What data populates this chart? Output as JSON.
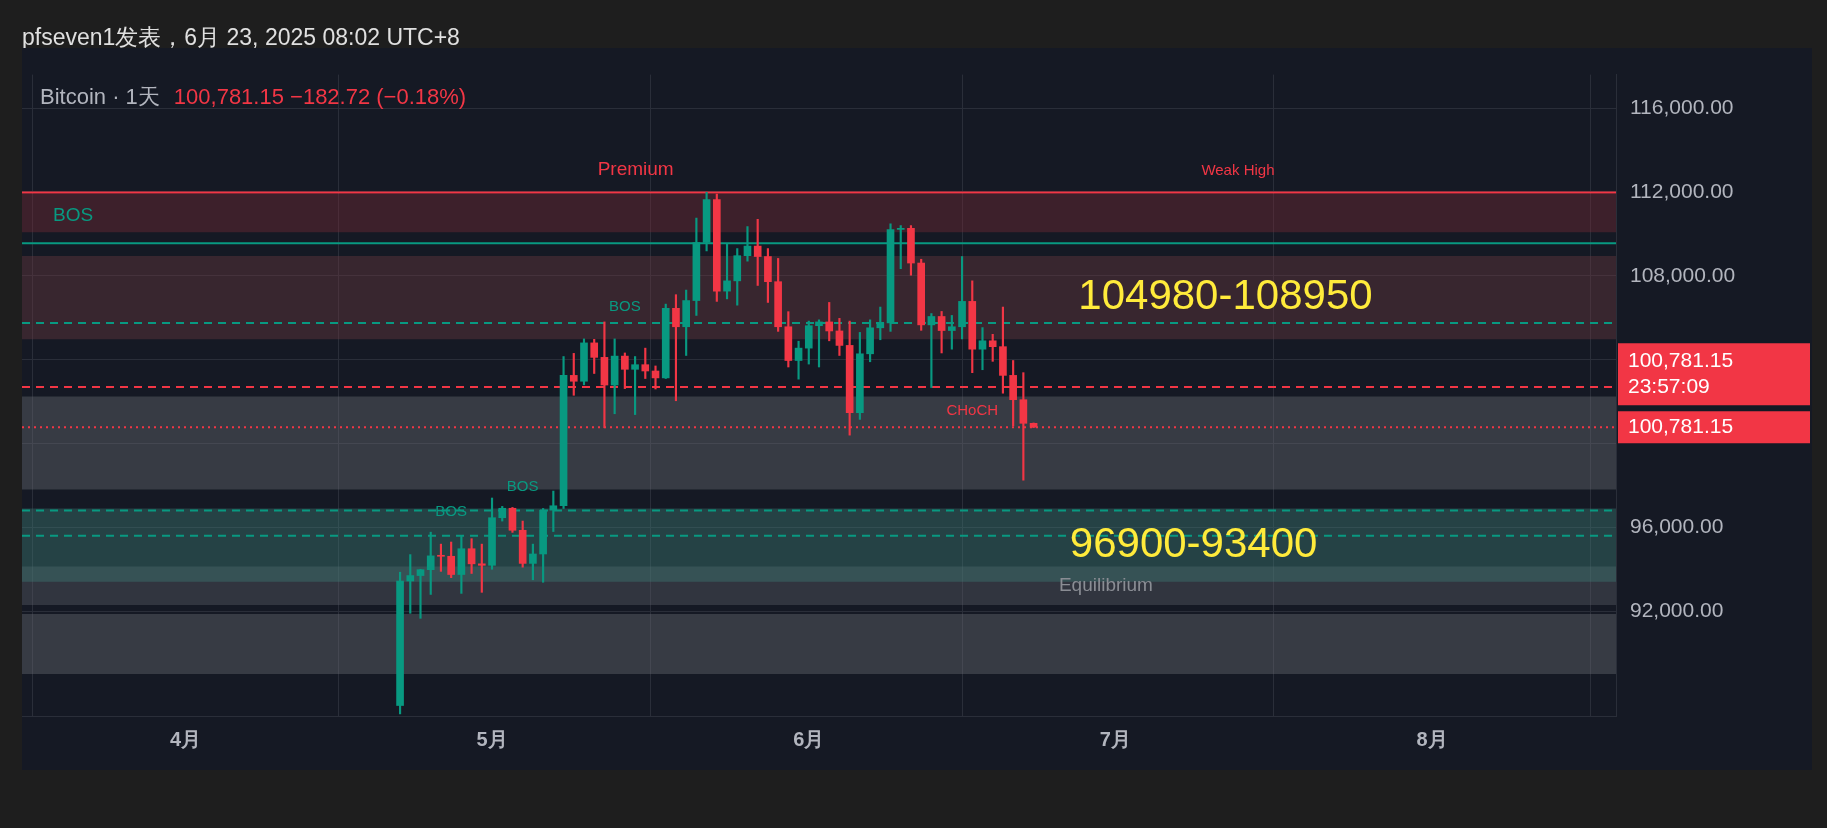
{
  "chart_data": {
    "type": "candlestick",
    "title": "Bitcoin · 1天",
    "subtitle": "100,781.15  −182.72 (−0.18%)",
    "x": [
      "2025-04-22",
      "2025-04-23",
      "2025-04-24",
      "2025-04-25",
      "2025-04-26",
      "2025-04-27",
      "2025-04-28",
      "2025-04-29",
      "2025-04-30",
      "2025-05-01",
      "2025-05-02",
      "2025-05-03",
      "2025-05-04",
      "2025-05-05",
      "2025-05-06",
      "2025-05-07",
      "2025-05-08",
      "2025-05-09",
      "2025-05-10",
      "2025-05-11",
      "2025-05-12",
      "2025-05-13",
      "2025-05-14",
      "2025-05-15",
      "2025-05-16",
      "2025-05-17",
      "2025-05-18",
      "2025-05-19",
      "2025-05-20",
      "2025-05-21",
      "2025-05-22",
      "2025-05-23",
      "2025-05-24",
      "2025-05-25",
      "2025-05-26",
      "2025-05-27",
      "2025-05-28",
      "2025-05-29",
      "2025-05-30",
      "2025-05-31",
      "2025-06-01",
      "2025-06-02",
      "2025-06-03",
      "2025-06-04",
      "2025-06-05",
      "2025-06-06",
      "2025-06-07",
      "2025-06-08",
      "2025-06-09",
      "2025-06-10",
      "2025-06-11",
      "2025-06-12",
      "2025-06-13",
      "2025-06-14",
      "2025-06-15",
      "2025-06-16",
      "2025-06-17",
      "2025-06-18",
      "2025-06-19",
      "2025-06-20",
      "2025-06-21",
      "2025-06-22",
      "2025-06-23"
    ],
    "ohlc": [
      [
        87500,
        93860,
        87100,
        93440
      ],
      [
        93440,
        94700,
        91900,
        93700
      ],
      [
        93700,
        94000,
        91660,
        93980
      ],
      [
        93980,
        95770,
        92800,
        94640
      ],
      [
        94640,
        95200,
        93900,
        94620
      ],
      [
        94620,
        95300,
        93600,
        93750
      ],
      [
        93750,
        95600,
        92850,
        94980
      ],
      [
        94980,
        95460,
        93800,
        94260
      ],
      [
        94260,
        95200,
        92900,
        94190
      ],
      [
        94190,
        97400,
        94000,
        96460
      ],
      [
        96460,
        97000,
        96300,
        96910
      ],
      [
        96910,
        96950,
        95760,
        95860
      ],
      [
        95860,
        96300,
        94100,
        94280
      ],
      [
        94280,
        95200,
        93500,
        94730
      ],
      [
        94730,
        96900,
        93380,
        96820
      ],
      [
        96820,
        97730,
        95800,
        97030
      ],
      [
        97030,
        104150,
        96900,
        103250
      ],
      [
        103250,
        104300,
        102300,
        102970
      ],
      [
        102970,
        104990,
        102800,
        104800
      ],
      [
        104800,
        104970,
        103340,
        104110
      ],
      [
        104110,
        105800,
        100750,
        102790
      ],
      [
        102790,
        104990,
        101420,
        104170
      ],
      [
        104170,
        104320,
        102620,
        103540
      ],
      [
        103540,
        104150,
        101380,
        103760
      ],
      [
        103760,
        104550,
        103100,
        103460
      ],
      [
        103460,
        103700,
        102600,
        103130
      ],
      [
        103130,
        106650,
        103100,
        106450
      ],
      [
        106450,
        107100,
        102040,
        105570
      ],
      [
        105570,
        107320,
        104200,
        106820
      ],
      [
        106820,
        110750,
        106110,
        109590
      ],
      [
        109590,
        111980,
        109190,
        111640
      ],
      [
        111640,
        111900,
        106780,
        107270
      ],
      [
        107270,
        109500,
        106900,
        107760
      ],
      [
        107760,
        109300,
        106600,
        108960
      ],
      [
        108960,
        110350,
        108700,
        109420
      ],
      [
        109420,
        110700,
        107540,
        108920
      ],
      [
        108920,
        109300,
        106730,
        107720
      ],
      [
        107720,
        108830,
        105350,
        105570
      ],
      [
        105570,
        106290,
        103650,
        103960
      ],
      [
        103960,
        104880,
        103070,
        104550
      ],
      [
        104550,
        105840,
        103790,
        105620
      ],
      [
        105620,
        105900,
        103650,
        105800
      ],
      [
        105800,
        106730,
        104900,
        105370
      ],
      [
        105370,
        105970,
        104200,
        104680
      ],
      [
        104680,
        105840,
        100400,
        101470
      ],
      [
        101470,
        105300,
        101150,
        104280
      ],
      [
        104280,
        105900,
        103900,
        105520
      ],
      [
        105520,
        106510,
        104950,
        105750
      ],
      [
        105750,
        110480,
        105350,
        110210
      ],
      [
        110210,
        110400,
        108340,
        110270
      ],
      [
        110270,
        110400,
        108030,
        108610
      ],
      [
        108610,
        108790,
        105400,
        105660
      ],
      [
        105660,
        106200,
        102670,
        106060
      ],
      [
        106060,
        106300,
        104320,
        105390
      ],
      [
        105390,
        106110,
        104500,
        105570
      ],
      [
        105570,
        108920,
        104990,
        106780
      ],
      [
        106780,
        107760,
        103380,
        104500
      ],
      [
        104500,
        105530,
        103520,
        104900
      ],
      [
        104900,
        105210,
        103920,
        104620
      ],
      [
        104620,
        106510,
        102400,
        103250
      ],
      [
        103250,
        103960,
        100840,
        102090
      ],
      [
        102090,
        103380,
        98250,
        100964
      ],
      [
        100964,
        100980,
        100760,
        100781.15
      ]
    ],
    "colors": [
      "#089981",
      "#089981",
      "#089981",
      "#089981",
      "#f23645",
      "#f23645",
      "#089981",
      "#f23645",
      "#f23645",
      "#089981",
      "#089981",
      "#f23645",
      "#f23645",
      "#089981",
      "#089981",
      "#089981",
      "#089981",
      "#f23645",
      "#089981",
      "#f23645",
      "#f23645",
      "#089981",
      "#f23645",
      "#089981",
      "#f23645",
      "#f23645",
      "#089981",
      "#f23645",
      "#089981",
      "#089981",
      "#089981",
      "#f23645",
      "#089981",
      "#089981",
      "#089981",
      "#f23645",
      "#f23645",
      "#f23645",
      "#f23645",
      "#089981",
      "#089981",
      "#089981",
      "#f23645",
      "#f23645",
      "#f23645",
      "#089981",
      "#089981",
      "#089981",
      "#089981",
      "#089981",
      "#f23645",
      "#f23645",
      "#089981",
      "#f23645",
      "#089981",
      "#089981",
      "#f23645",
      "#089981",
      "#f23645",
      "#f23645",
      "#f23645",
      "#f23645",
      "#f23645"
    ],
    "xlim": [
      "2025-03-16",
      "2025-08-19"
    ],
    "xticks": [
      {
        "value": "2025-04-01",
        "label": "4月"
      },
      {
        "value": "2025-05-01",
        "label": "5月"
      },
      {
        "value": "2025-06-01",
        "label": "6月"
      },
      {
        "value": "2025-07-01",
        "label": "7月"
      },
      {
        "value": "2025-08-01",
        "label": "8月"
      }
    ],
    "ylim": [
      87000,
      117600
    ],
    "yticks": [
      {
        "value": 92000,
        "label": "92,000.00"
      },
      {
        "value": 96000,
        "label": "96,000.00"
      },
      {
        "value": 100000,
        "label": null
      },
      {
        "value": 104000,
        "label": null
      },
      {
        "value": 108000,
        "label": "108,000.00"
      },
      {
        "value": 112000,
        "label": "112,000.00"
      },
      {
        "value": 116000,
        "label": "116,000.00"
      }
    ],
    "grid": true,
    "legend": false,
    "bands": [
      {
        "axis": "y",
        "from": 110080,
        "to": 111900,
        "color": "#7a2a38",
        "label": "Premium"
      },
      {
        "axis": "y",
        "from": 104980,
        "to": 108950,
        "color": "#6e3a40",
        "label": "104980-108950"
      },
      {
        "axis": "y",
        "from": 97800,
        "to": 102240,
        "color": "#6b6e76"
      },
      {
        "axis": "y",
        "from": 89000,
        "to": 91870,
        "color": "#6b6e76"
      },
      {
        "axis": "y",
        "from": 92300,
        "to": 94130,
        "color": "#5d6068",
        "label": "Equilibrium"
      },
      {
        "axis": "y",
        "from": 93400,
        "to": 96900,
        "color": "#3f7f78",
        "label": "96900-93400"
      }
    ],
    "ref_lines": [
      {
        "axis": "y",
        "value": 109550,
        "color": "#089981",
        "line_style": "solid"
      },
      {
        "axis": "y",
        "value": 111970,
        "color": "#f23645",
        "line_style": "solid"
      },
      {
        "axis": "y",
        "value": 105750,
        "color": "#089981",
        "line_style": "dashed"
      },
      {
        "axis": "y",
        "value": 96800,
        "color": "#089981",
        "line_style": "dashed"
      },
      {
        "axis": "y",
        "value": 95600,
        "color": "#089981",
        "line_style": "dashed"
      },
      {
        "axis": "y",
        "value": 102700,
        "color": "#f23645",
        "line_style": "dashed"
      },
      {
        "axis": "y",
        "value": 100781.15,
        "color": "#f23645",
        "line_style": "dotted",
        "label": "100,781.15"
      }
    ],
    "annotations": [
      "pfseven1发表，6月 23, 2025 08:02 UTC+8",
      "100,781.15",
      "23:57:09",
      {
        "text": "Weak High",
        "x": "2025-07-13",
        "y": 111970
      },
      {
        "text": "BOS",
        "x": "2025-03-21",
        "y": 109550
      },
      {
        "text": "BOS",
        "x": "2025-05-14",
        "y": 105750
      },
      {
        "text": "BOS",
        "x": "2025-05-04",
        "y": 96800
      },
      {
        "text": "BOS",
        "x": "2025-04-27",
        "y": 95600
      },
      {
        "text": "CHoCH",
        "x": "2025-06-17",
        "y": 102700
      }
    ]
  }
}
